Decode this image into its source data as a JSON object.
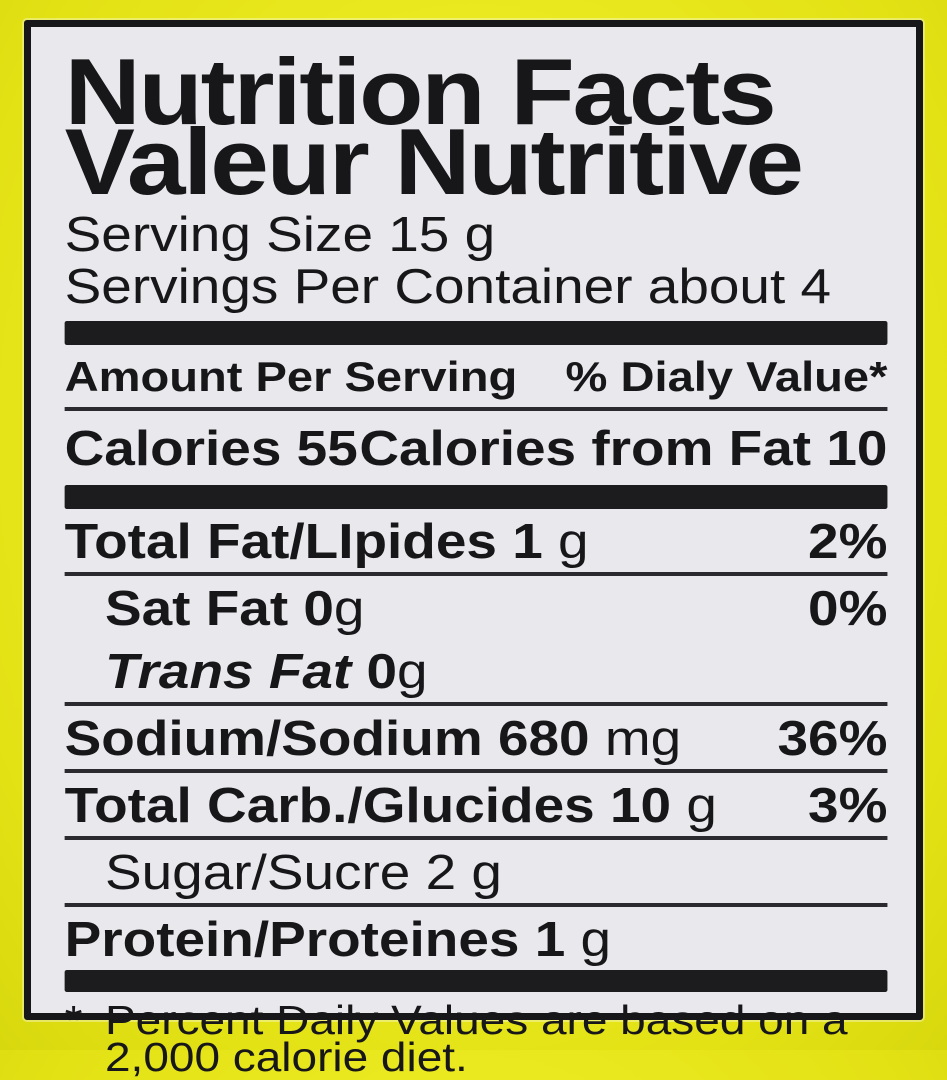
{
  "colors": {
    "bag_yellow": "#eae81f",
    "label_background": "#e9e8ec",
    "ink_black": "#17171a"
  },
  "header": {
    "title_en": "Nutrition Facts",
    "title_fr": "Valeur Nutritive",
    "serving_size": "Serving Size 15 g",
    "servings_per_container": "Servings Per Container about 4"
  },
  "table": {
    "amount_per_serving": "Amount Per Serving",
    "daily_value_header": "% Dialy Value*",
    "calories": "Calories 55",
    "calories_from_fat": "Calories from Fat 10",
    "nutrients": [
      {
        "bold": "Total Fat/LIpides 1",
        "regular": " g",
        "percent": "2%"
      },
      {
        "bold": "Sat Fat 0",
        "regular": "g",
        "percent": "0%"
      },
      {
        "italic": "Trans Fat ",
        "bold": "0",
        "regular": "g",
        "percent": ""
      },
      {
        "bold": "Sodium/Sodium 680",
        "regular": " mg",
        "percent": "36%"
      },
      {
        "bold": "Total Carb./Glucides 10",
        "regular": " g",
        "percent": "3%"
      },
      {
        "regular": "Sugar/Sucre 2 g",
        "percent": ""
      },
      {
        "bold": "Protein/Proteines 1",
        "regular": " g",
        "percent": ""
      }
    ]
  },
  "footnote": {
    "asterisk": "*",
    "line1": "Percent Daily Values are based on a",
    "line2": "2,000 calorie diet."
  }
}
